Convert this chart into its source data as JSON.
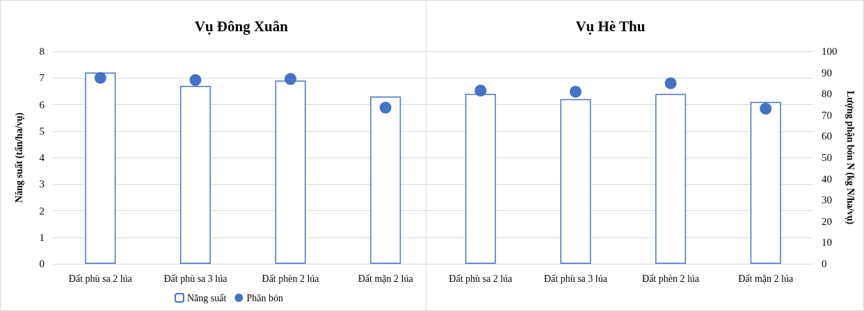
{
  "chart_data": {
    "type": "bar",
    "annotations": [
      "Vụ Đông Xuân",
      "Vụ Hè Thu"
    ],
    "categories": [
      "Đất phù sa 2 lúa",
      "Đất phù sa 3 lúa",
      "Đất phèn 2 lúa",
      "Đất mặn 2 lúa",
      "Đất phù sa 2 lúa",
      "Đất phù sa 3 lúa",
      "Đất phèn 2 lúa",
      "Đất mặn 2 lúa"
    ],
    "ylabel": "Năng suất (tấn/ha/vụ)",
    "y2label": "Lượng phận bón N (kg N/ha/vụ)",
    "ylim": [
      0,
      8
    ],
    "yticks": [
      0,
      1,
      2,
      3,
      4,
      5,
      6,
      7,
      8
    ],
    "y2lim": [
      0,
      100
    ],
    "y2ticks": [
      0,
      10,
      20,
      30,
      40,
      50,
      60,
      70,
      80,
      90,
      100
    ],
    "grid": "y",
    "legend": "bottom left",
    "series": [
      {
        "name": "Năng suất",
        "color": "#4472c4",
        "values": [
          7.2,
          6.7,
          6.9,
          6.3,
          6.4,
          6.2,
          6.4,
          6.1
        ]
      },
      {
        "name": "Phân bón",
        "type": "scatter",
        "axis": "y2",
        "marker": "circle",
        "color": "#4472c4",
        "values": [
          87.5,
          86.5,
          87,
          73.5,
          81.5,
          81,
          85,
          73
        ]
      }
    ]
  }
}
